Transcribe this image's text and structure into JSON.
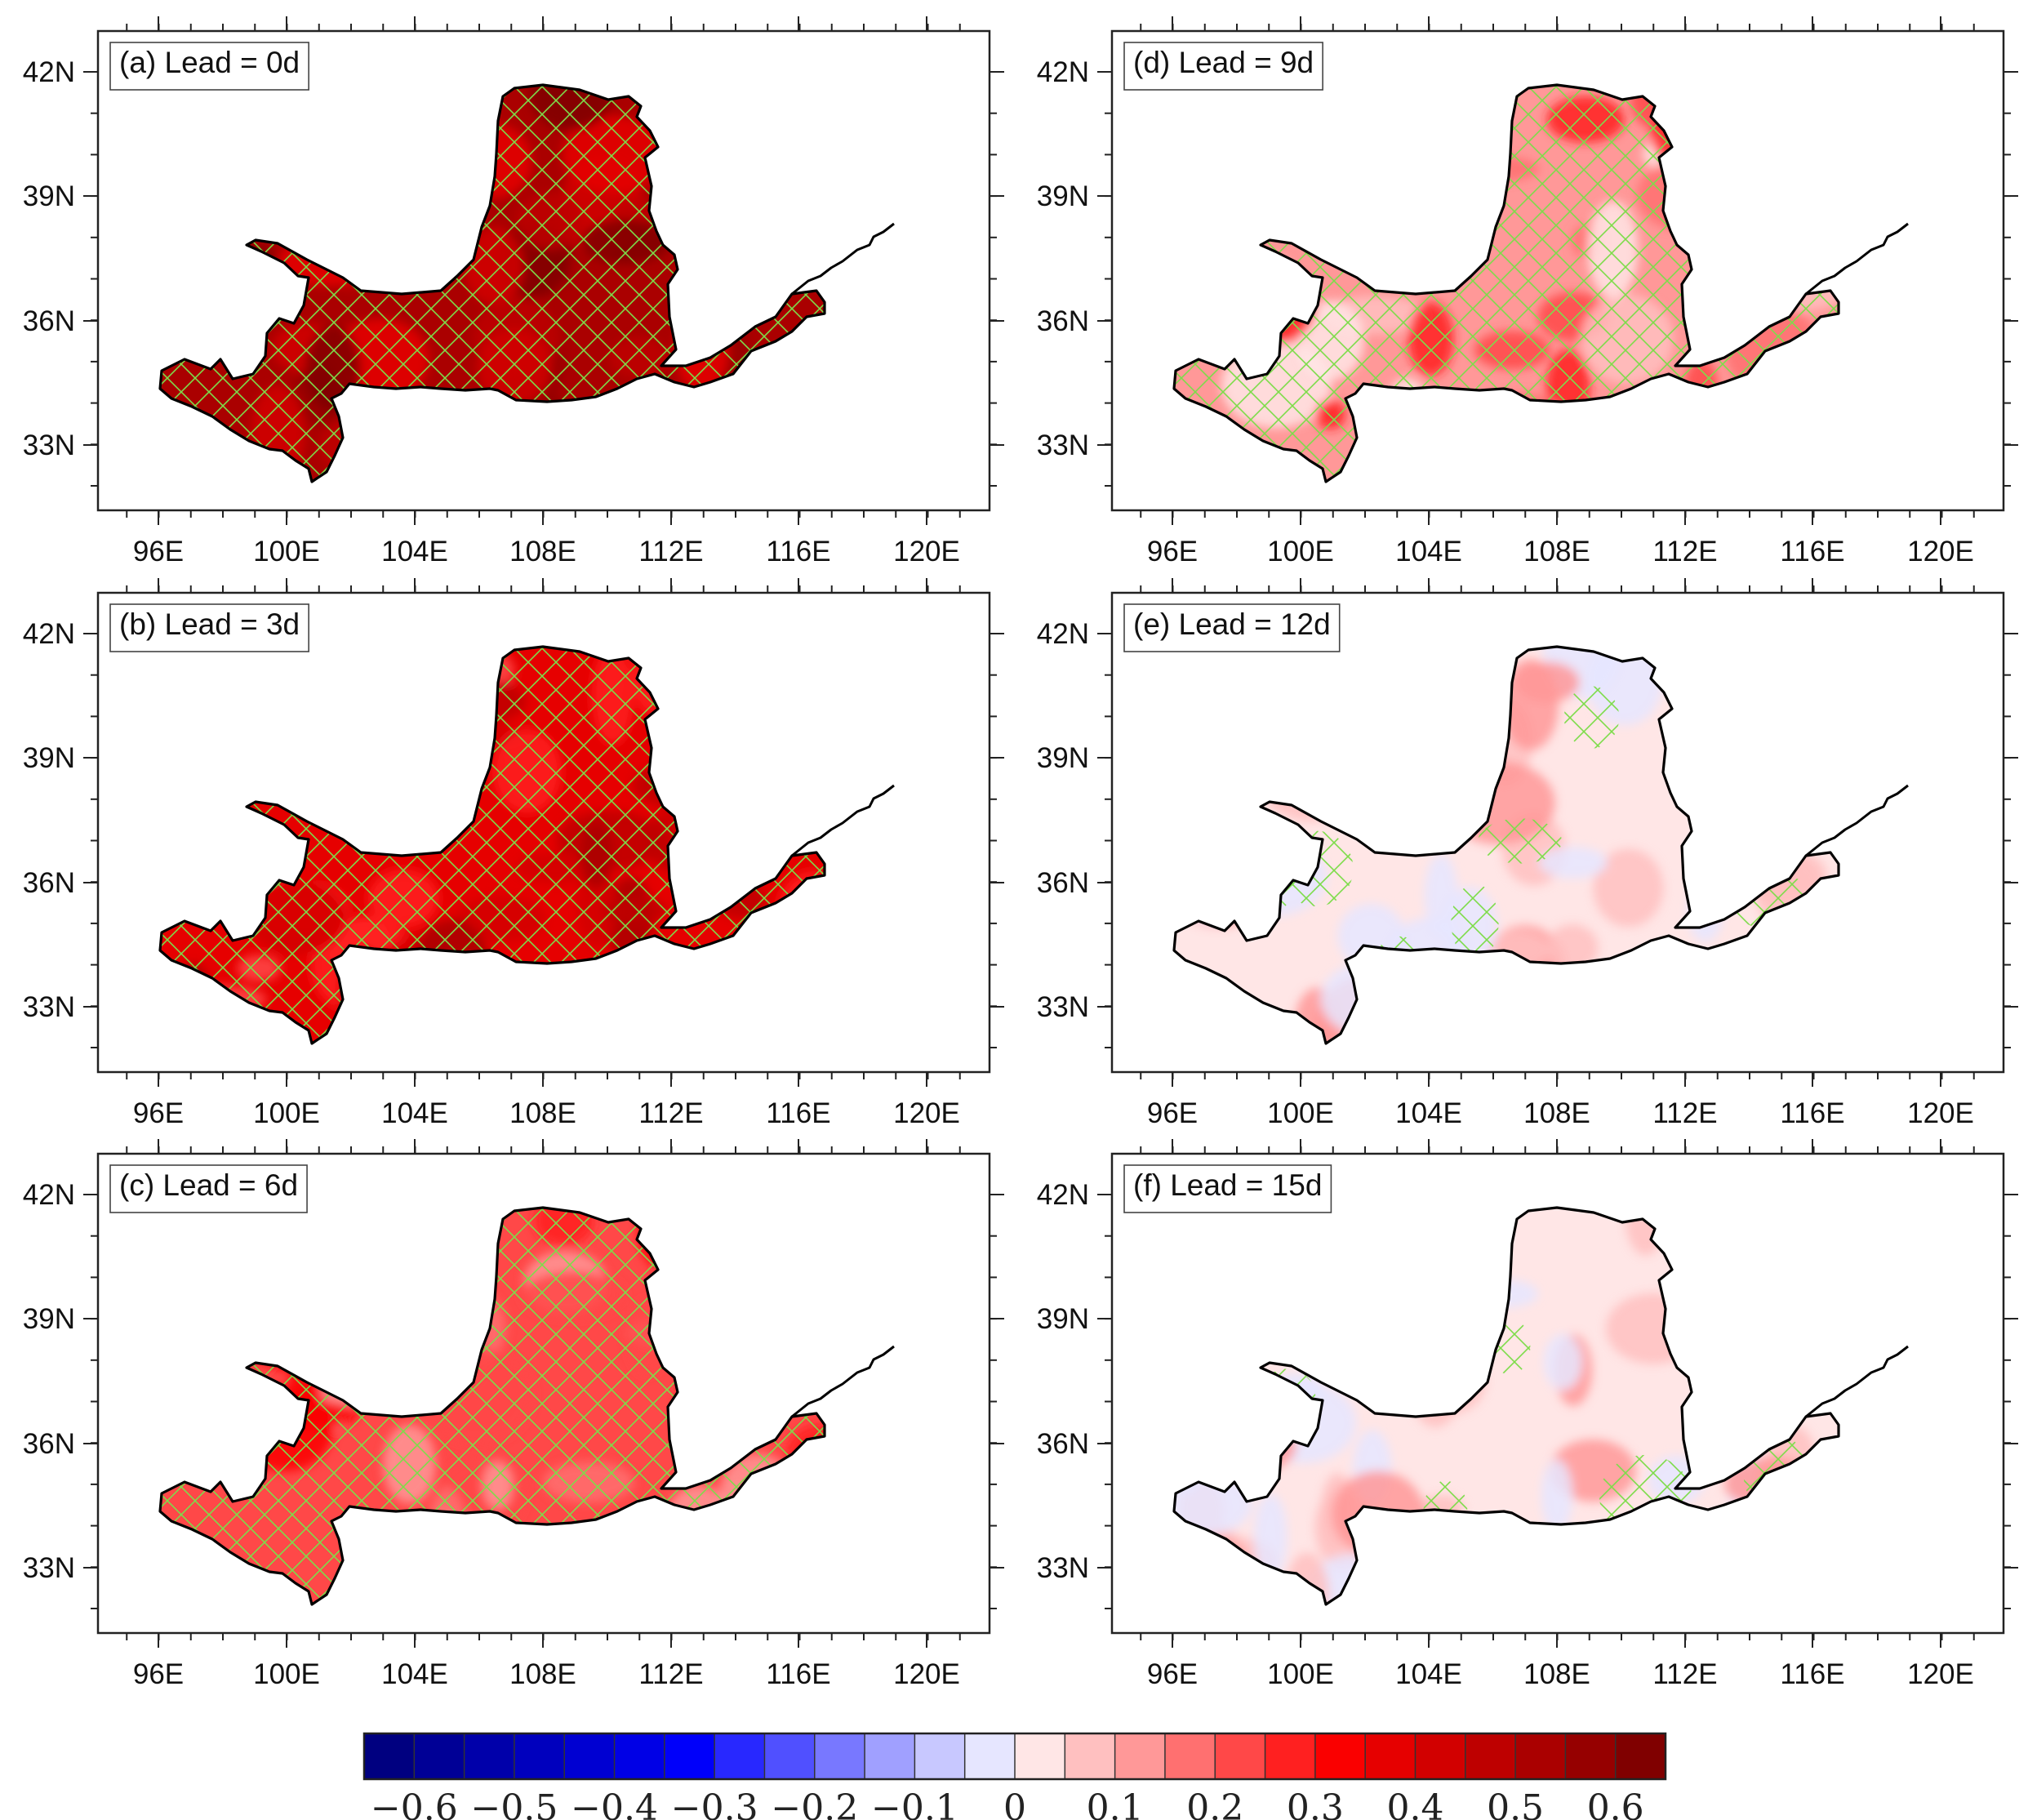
{
  "colors": {
    "outline": "#000000",
    "hatch": "#7ddc4a",
    "panel_border": "#222222"
  },
  "axes": {
    "lat_labels": [
      "42N",
      "39N",
      "36N",
      "33N"
    ],
    "lon_labels": [
      "96E",
      "100E",
      "104E",
      "108E",
      "112E",
      "116E",
      "120E"
    ]
  },
  "panels": [
    {
      "label": "(a) Lead = 0d",
      "level": 5,
      "hatch": true
    },
    {
      "label": "(b) Lead = 3d",
      "level": 3,
      "hatch": true
    },
    {
      "label": "(c) Lead = 6d",
      "level": 2,
      "hatch": true
    },
    {
      "label": "(d) Lead = 9d",
      "level": 1,
      "hatch": true
    },
    {
      "label": "(e) Lead = 12d",
      "level": 0,
      "hatch": "partial"
    },
    {
      "label": "(f) Lead = 15d",
      "level": 0,
      "hatch": "sparse"
    }
  ],
  "colorbar": {
    "colors": [
      "#000080",
      "#000096",
      "#0000aa",
      "#0000be",
      "#0000d2",
      "#0000e6",
      "#0000fa",
      "#2828ff",
      "#5050ff",
      "#7878ff",
      "#a0a0ff",
      "#c8c8ff",
      "#e6e6ff",
      "#ffe6e6",
      "#ffc0c0",
      "#ff9898",
      "#ff7070",
      "#ff4848",
      "#ff2020",
      "#fa0000",
      "#e60000",
      "#d20000",
      "#be0000",
      "#aa0000",
      "#960000",
      "#800000"
    ],
    "labels": [
      "−0.6",
      "−0.5",
      "−0.4",
      "−0.3",
      "−0.2",
      "−0.1",
      "0",
      "0.1",
      "0.2",
      "0.3",
      "0.4",
      "0.5",
      "0.6"
    ]
  }
}
